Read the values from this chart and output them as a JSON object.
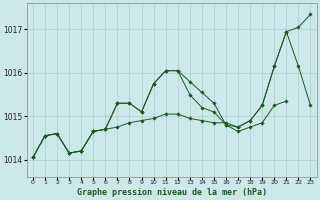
{
  "title": "Graphe pression niveau de la mer (hPa)",
  "xlim": [
    -0.5,
    23.5
  ],
  "ylim": [
    1013.6,
    1017.6
  ],
  "yticks": [
    1014,
    1015,
    1016,
    1017
  ],
  "xticks": [
    0,
    1,
    2,
    3,
    4,
    5,
    6,
    7,
    8,
    9,
    10,
    11,
    12,
    13,
    14,
    15,
    16,
    17,
    18,
    19,
    20,
    21,
    22,
    23
  ],
  "background_color": "#cce8ea",
  "grid_color": "#aacfd2",
  "line_color": "#1a5c1a",
  "series": [
    {
      "x": [
        0,
        1,
        2,
        3,
        4,
        5,
        6,
        7,
        8,
        9,
        10,
        11,
        12,
        13,
        14,
        15,
        16,
        17,
        18,
        19,
        20,
        21,
        22,
        23
      ],
      "y": [
        1014.05,
        1014.55,
        1014.6,
        1014.15,
        1014.2,
        1014.65,
        1014.7,
        1014.75,
        1014.85,
        1014.9,
        1014.95,
        1015.05,
        1015.05,
        1014.95,
        1014.9,
        1014.85,
        1014.85,
        1014.75,
        1014.9,
        1015.25,
        1016.15,
        1016.95,
        1017.05,
        1017.35
      ]
    },
    {
      "x": [
        0,
        1,
        2,
        3,
        4,
        5,
        6,
        7,
        8,
        9,
        10,
        11,
        12,
        13,
        14,
        15,
        16,
        17,
        18,
        19,
        20,
        21,
        22,
        23
      ],
      "y": [
        1014.05,
        1014.55,
        1014.6,
        1014.15,
        1014.2,
        1014.65,
        1014.7,
        1015.3,
        1015.3,
        1015.1,
        1015.75,
        1016.05,
        1016.05,
        1015.5,
        1015.2,
        1015.1,
        1014.8,
        1014.65,
        1014.75,
        1014.85,
        1015.25,
        1015.35,
        null,
        null
      ]
    },
    {
      "x": [
        0,
        1,
        2,
        3,
        4,
        5,
        6,
        7,
        8,
        9,
        10,
        11,
        12,
        13,
        14,
        15,
        16,
        17,
        18,
        19,
        20,
        21,
        22,
        23
      ],
      "y": [
        1014.05,
        1014.55,
        1014.6,
        1014.15,
        1014.2,
        1014.65,
        1014.7,
        1015.3,
        1015.3,
        1015.1,
        1015.75,
        1016.05,
        1016.05,
        1015.8,
        1015.55,
        1015.3,
        1014.8,
        1014.75,
        1014.9,
        1015.25,
        1016.15,
        1016.95,
        1016.15,
        1015.25
      ]
    }
  ]
}
